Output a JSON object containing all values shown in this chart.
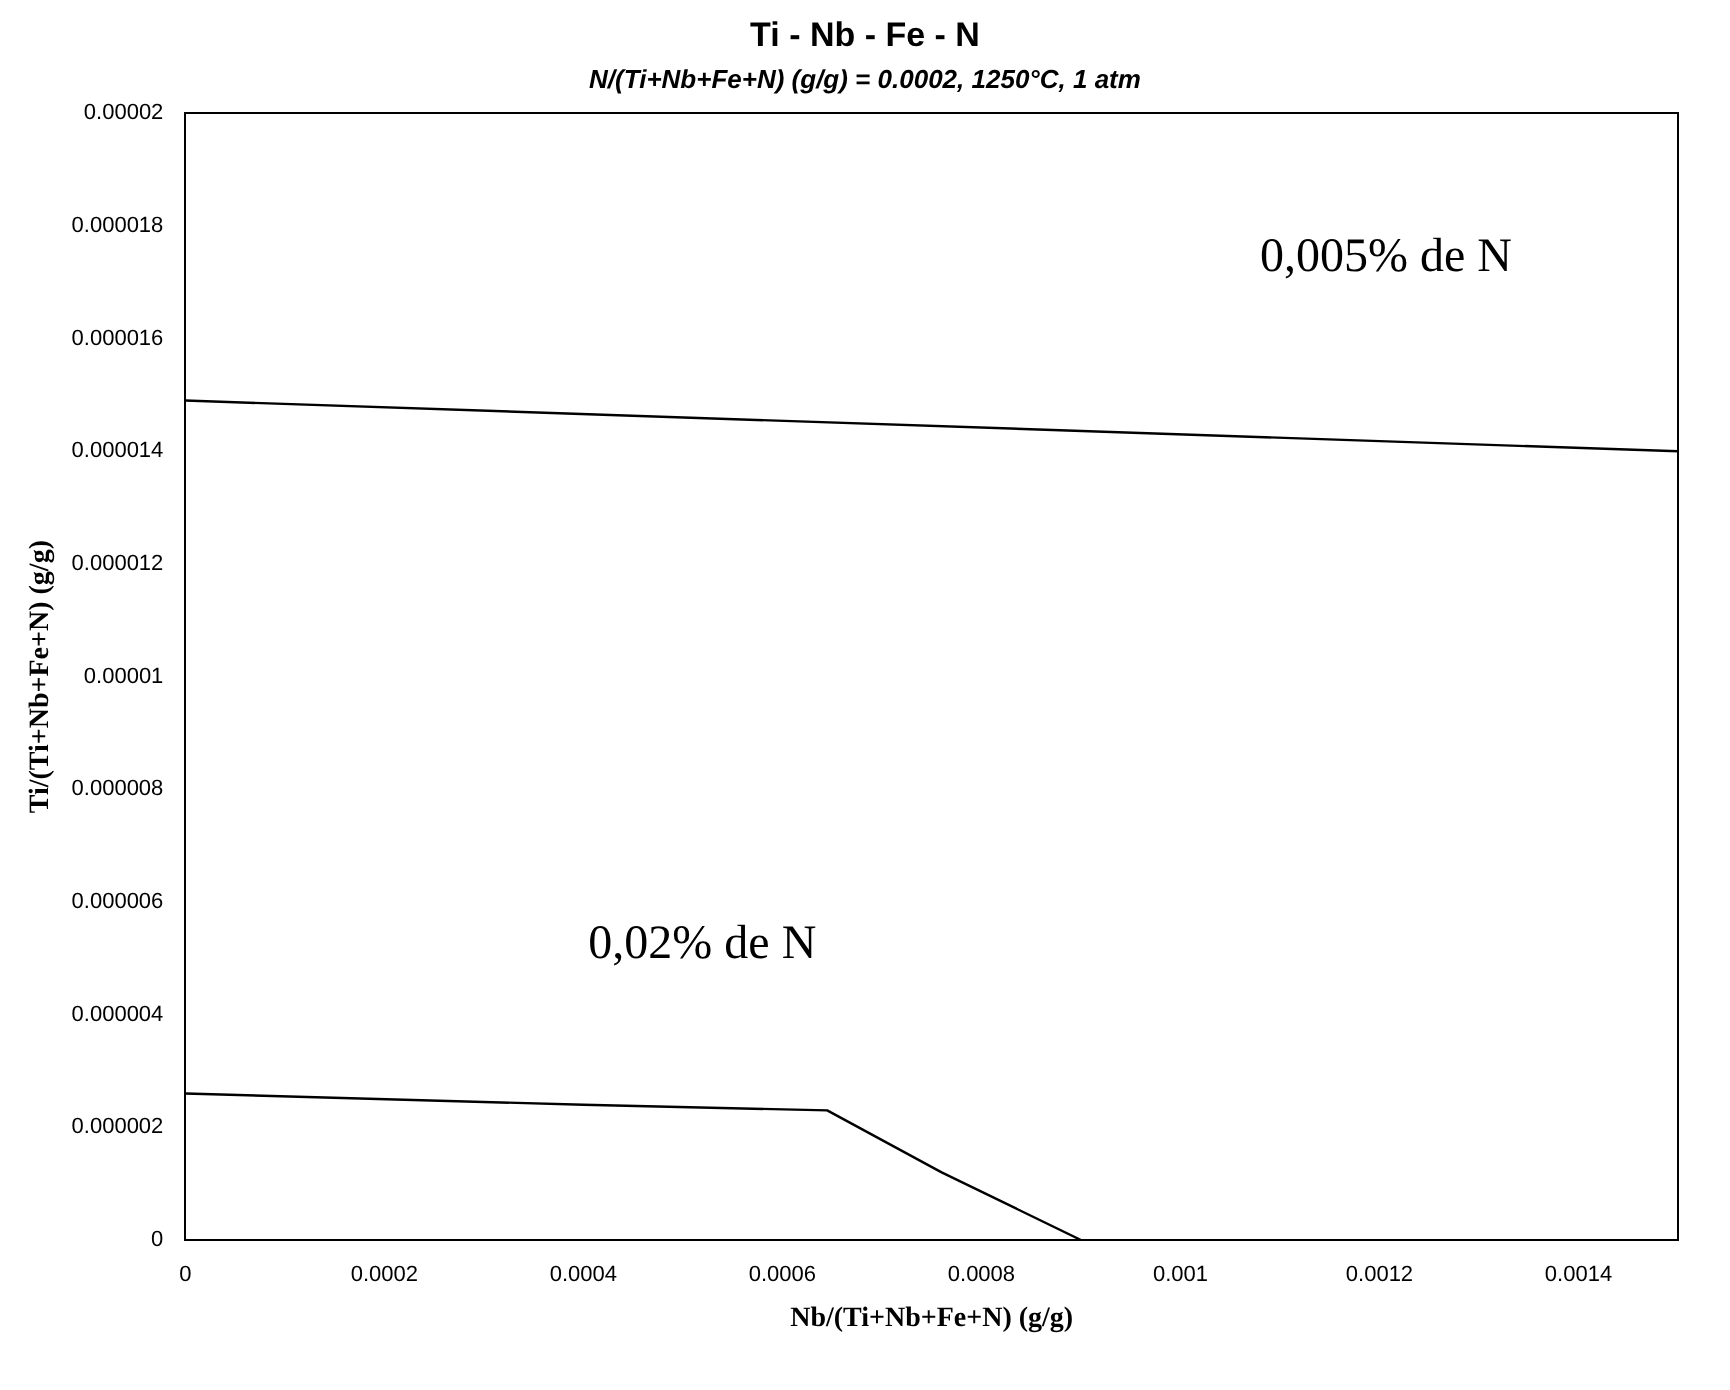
{
  "chart_data": {
    "type": "line",
    "title": "Ti - Nb - Fe - N",
    "subtitle": "N/(Ti+Nb+Fe+N) (g/g)  = 0.0002,  1250°C, 1 atm",
    "xlabel": "Nb/(Ti+Nb+Fe+N) (g/g)",
    "ylabel": "Ti/(Ti+Nb+Fe+N) (g/g)",
    "series": [
      {
        "color": "#000000",
        "x": [
          0,
          0.0015
        ],
        "values": [
          1.49e-05,
          1.4e-05
        ]
      },
      {
        "color": "#000000",
        "x": [
          0,
          0.0004,
          0.000645,
          0.00076,
          0.0009
        ],
        "values": [
          2.6e-06,
          2.4e-06,
          2.3e-06,
          1.2e-06,
          0
        ]
      }
    ],
    "annotations": [
      "0,005% de N",
      "0,02% de N"
    ],
    "xlim": [
      0,
      0.0015
    ],
    "xticks": [
      0,
      0.0002,
      0.0004,
      0.0006,
      0.0008,
      0.001,
      0.0012,
      0.0014
    ],
    "ylim": [
      0,
      2e-05
    ],
    "yticks": [
      0,
      {
        "value": 2e-06,
        "label": "0.000002"
      },
      {
        "value": 4e-06,
        "label": "0.000004"
      },
      {
        "value": 6e-06,
        "label": "0.000006"
      },
      {
        "value": 8e-06,
        "label": "0.000008"
      },
      {
        "value": 1e-05,
        "label": "0.00001"
      },
      {
        "value": 1.2e-05,
        "label": "0.000012"
      },
      {
        "value": 1.4e-05,
        "label": "0.000014"
      },
      {
        "value": 1.6e-05,
        "label": "0.000016"
      },
      {
        "value": 1.8e-05,
        "label": "0.000018"
      },
      {
        "value": 2e-05,
        "label": "0.00002"
      }
    ],
    "grid": false,
    "legend": false,
    "marker": "none",
    "line_style": "solid"
  }
}
